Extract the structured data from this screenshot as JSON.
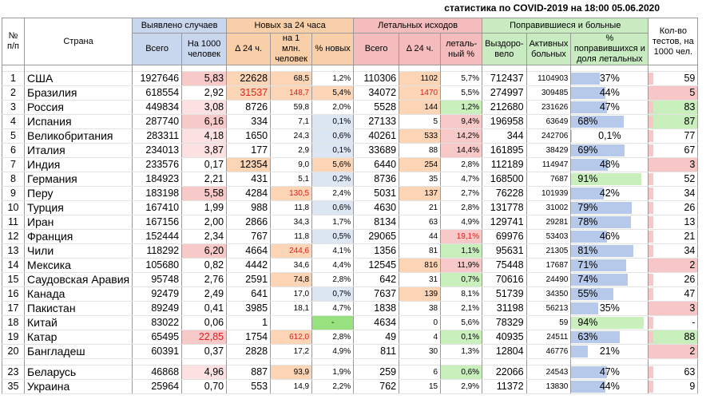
{
  "title": "статистика по COVID-2019 на 18:00 05.06.2020",
  "headers": {
    "num": "№ п/п",
    "country": "Страна",
    "detected": "Выявлено случаев",
    "detected_total": "Всего",
    "detected_per1000": "На 1000 человек",
    "new24": "Новых за 24 часа",
    "new_delta": "Δ 24 ч.",
    "new_per1m": "на 1 млн. человек",
    "new_pct": "% новых",
    "deaths": "Летальных исходов",
    "deaths_total": "Всего",
    "deaths_delta": "Δ 24 ч.",
    "deaths_pct": "леталь-ный %",
    "recovered": "Поправившиеся и больные",
    "recovered_total": "Выздоро-вело",
    "active": "Активных больных",
    "recovered_pct": "% поправившихся и доля летальных",
    "tests": "Кол-во тестов, на 1000 чел."
  },
  "rows": [
    {
      "n": "1",
      "country": "США",
      "total": "1927646",
      "per1000": "5,83",
      "new": "22628",
      "per1m": "68,5",
      "pctnew": "1,2%",
      "deaths": "110306",
      "ddelta": "1102",
      "dpct": "5,7%",
      "recovered": "712437",
      "active": "1104903",
      "recpct": "37%",
      "rec": 0.37,
      "tests": "59"
    },
    {
      "n": "2",
      "country": "Бразилия",
      "total": "618554",
      "per1000": "2,92",
      "new": "31537",
      "per1m": "148,7",
      "pctnew": "5,4%",
      "deaths": "34072",
      "ddelta": "1470",
      "dpct": "5,5%",
      "recovered": "274997",
      "active": "309485",
      "recpct": "44%",
      "rec": 0.44,
      "tests": "5"
    },
    {
      "n": "3",
      "country": "Россия",
      "total": "449834",
      "per1000": "3,08",
      "new": "8726",
      "per1m": "59,8",
      "pctnew": "2,0%",
      "deaths": "5528",
      "ddelta": "144",
      "dpct": "1,2%",
      "recovered": "212680",
      "active": "231626",
      "recpct": "47%",
      "rec": 0.47,
      "tests": "83"
    },
    {
      "n": "4",
      "country": "Испания",
      "total": "287740",
      "per1000": "6,16",
      "new": "334",
      "per1m": "7,1",
      "pctnew": "0,1%",
      "deaths": "27133",
      "ddelta": "5",
      "dpct": "9,4%",
      "recovered": "196958",
      "active": "63649",
      "recpct": "68%",
      "rec": 0.68,
      "tests": "87"
    },
    {
      "n": "5",
      "country": "Великобритания",
      "total": "283311",
      "per1000": "4,18",
      "new": "1650",
      "per1m": "24,3",
      "pctnew": "0,6%",
      "deaths": "40261",
      "ddelta": "533",
      "dpct": "14,2%",
      "recovered": "344",
      "active": "242706",
      "recpct": "0,1%",
      "rec": 0.001,
      "tests": "77"
    },
    {
      "n": "6",
      "country": "Италия",
      "total": "234013",
      "per1000": "3,87",
      "new": "177",
      "per1m": "2,9",
      "pctnew": "0,1%",
      "deaths": "33689",
      "ddelta": "88",
      "dpct": "14,4%",
      "recovered": "161895",
      "active": "38429",
      "recpct": "69%",
      "rec": 0.69,
      "tests": "67"
    },
    {
      "n": "7",
      "country": "Индия",
      "total": "233576",
      "per1000": "0,17",
      "new": "12354",
      "per1m": "9,0",
      "pctnew": "5,6%",
      "deaths": "6440",
      "ddelta": "254",
      "dpct": "2,8%",
      "recovered": "112189",
      "active": "114947",
      "recpct": "48%",
      "rec": 0.48,
      "tests": "3"
    },
    {
      "n": "8",
      "country": "Германия",
      "total": "184923",
      "per1000": "2,21",
      "new": "431",
      "per1m": "5,1",
      "pctnew": "0,2%",
      "deaths": "8736",
      "ddelta": "35",
      "dpct": "4,7%",
      "recovered": "168500",
      "active": "7687",
      "recpct": "91%",
      "rec": 0.91,
      "tests": "52"
    },
    {
      "n": "9",
      "country": "Перу",
      "total": "183198",
      "per1000": "5,58",
      "new": "4284",
      "per1m": "130,5",
      "pctnew": "2,4%",
      "deaths": "5031",
      "ddelta": "137",
      "dpct": "2,7%",
      "recovered": "76228",
      "active": "101939",
      "recpct": "42%",
      "rec": 0.42,
      "tests": "34"
    },
    {
      "n": "10",
      "country": "Турция",
      "total": "167410",
      "per1000": "1,99",
      "new": "988",
      "per1m": "11,8",
      "pctnew": "0,6%",
      "deaths": "4630",
      "ddelta": "21",
      "dpct": "2,8%",
      "recovered": "131778",
      "active": "31002",
      "recpct": "79%",
      "rec": 0.79,
      "tests": "26"
    },
    {
      "n": "11",
      "country": "Иран",
      "total": "167156",
      "per1000": "2,00",
      "new": "2866",
      "per1m": "34,3",
      "pctnew": "1,7%",
      "deaths": "8134",
      "ddelta": "63",
      "dpct": "4,9%",
      "recovered": "129741",
      "active": "29281",
      "recpct": "78%",
      "rec": 0.78,
      "tests": "13"
    },
    {
      "n": "12",
      "country": "Франция",
      "total": "152444",
      "per1000": "2,34",
      "new": "767",
      "per1m": "11,8",
      "pctnew": "0,5%",
      "deaths": "29065",
      "ddelta": "44",
      "dpct": "19,1%",
      "recovered": "69976",
      "active": "53403",
      "recpct": "46%",
      "rec": 0.46,
      "tests": "21"
    },
    {
      "n": "13",
      "country": "Чили",
      "total": "118292",
      "per1000": "6,20",
      "new": "4664",
      "per1m": "244,6",
      "pctnew": "4,1%",
      "deaths": "1356",
      "ddelta": "81",
      "dpct": "1,1%",
      "recovered": "95631",
      "active": "21305",
      "recpct": "81%",
      "rec": 0.81,
      "tests": "34"
    },
    {
      "n": "14",
      "country": "Мексика",
      "total": "105680",
      "per1000": "0,82",
      "new": "4442",
      "per1m": "34,6",
      "pctnew": "4,4%",
      "deaths": "12545",
      "ddelta": "816",
      "dpct": "11,9%",
      "recovered": "75448",
      "active": "17687",
      "recpct": "71%",
      "rec": 0.71,
      "tests": "2"
    },
    {
      "n": "15",
      "country": "Саудовская Аравия",
      "total": "95748",
      "per1000": "2,76",
      "new": "2591",
      "per1m": "74,8",
      "pctnew": "2,8%",
      "deaths": "642",
      "ddelta": "31",
      "dpct": "0,7%",
      "recovered": "70616",
      "active": "24490",
      "recpct": "74%",
      "rec": 0.74,
      "tests": "26"
    },
    {
      "n": "16",
      "country": "Канада",
      "total": "92479",
      "per1000": "2,49",
      "new": "641",
      "per1m": "17,0",
      "pctnew": "0,7%",
      "deaths": "7637",
      "ddelta": "139",
      "dpct": "8,1%",
      "recovered": "51739",
      "active": "34350",
      "recpct": "55%",
      "rec": 0.55,
      "tests": "47"
    },
    {
      "n": "17",
      "country": "Пакистан",
      "total": "89249",
      "per1000": "0,41",
      "new": "3985",
      "per1m": "18,1",
      "pctnew": "4,7%",
      "deaths": "1838",
      "ddelta": "38",
      "dpct": "2,1%",
      "recovered": "31198",
      "active": "56213",
      "recpct": "35%",
      "rec": 0.35,
      "tests": "3"
    },
    {
      "n": "18",
      "country": "Китай",
      "total": "83022",
      "per1000": "0,06",
      "new": "1",
      "per1m": "",
      "pctnew": "-",
      "deaths": "4634",
      "ddelta": "0",
      "dpct": "5,6%",
      "recovered": "78329",
      "active": "59",
      "recpct": "94%",
      "rec": 0.94,
      "tests": "-"
    },
    {
      "n": "19",
      "country": "Катар",
      "total": "65495",
      "per1000": "22,85",
      "new": "1754",
      "per1m": "612,0",
      "pctnew": "2,8%",
      "deaths": "49",
      "ddelta": "4",
      "dpct": "0,1%",
      "recovered": "40935",
      "active": "24511",
      "recpct": "63%",
      "rec": 0.63,
      "tests": "88"
    },
    {
      "n": "20",
      "country": "Бангладеш",
      "total": "60391",
      "per1000": "0,37",
      "new": "2828",
      "per1m": "17,2",
      "pctnew": "4,9%",
      "deaths": "811",
      "ddelta": "30",
      "dpct": "1,3%",
      "recovered": "12804",
      "active": "46776",
      "recpct": "21%",
      "rec": 0.21,
      "tests": "2"
    }
  ],
  "extra_rows": [
    {
      "n": "23",
      "country": "Беларусь",
      "total": "46868",
      "per1000": "4,96",
      "new": "887",
      "per1m": "93,9",
      "pctnew": "1,9%",
      "deaths": "259",
      "ddelta": "6",
      "dpct": "0,6%",
      "recovered": "22066",
      "active": "24543",
      "recpct": "47%",
      "rec": 0.47,
      "tests": "63"
    },
    {
      "n": "35",
      "country": "Украина",
      "total": "25964",
      "per1000": "0,70",
      "new": "553",
      "per1m": "14,9",
      "pctnew": "2,2%",
      "deaths": "762",
      "ddelta": "15",
      "dpct": "2,9%",
      "recovered": "11372",
      "active": "13830",
      "recpct": "44%",
      "rec": 0.44,
      "tests": "9"
    }
  ]
}
